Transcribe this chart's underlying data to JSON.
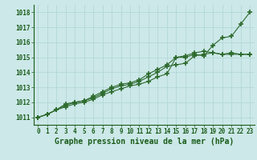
{
  "title": "Graphe pression niveau de la mer (hPa)",
  "hours": [
    0,
    1,
    2,
    3,
    4,
    5,
    6,
    7,
    8,
    9,
    10,
    11,
    12,
    13,
    14,
    15,
    16,
    17,
    18,
    19,
    20,
    21,
    22,
    23
  ],
  "line1": [
    1011.0,
    1011.2,
    1011.5,
    1011.7,
    1011.9,
    1012.0,
    1012.2,
    1012.5,
    1012.7,
    1012.9,
    1013.1,
    1013.2,
    1013.4,
    1013.7,
    1013.9,
    1015.0,
    1015.0,
    1015.2,
    1015.1,
    1015.8,
    1016.3,
    1016.4,
    1017.2,
    1018.0
  ],
  "line2": [
    1011.0,
    1011.2,
    1011.5,
    1011.8,
    1012.0,
    1012.1,
    1012.3,
    1012.6,
    1012.9,
    1013.1,
    1013.2,
    1013.4,
    1013.7,
    1014.0,
    1014.4,
    1014.5,
    1014.6,
    1015.1,
    1015.2,
    1015.3,
    1015.2,
    1015.3,
    1015.2,
    1015.2
  ],
  "line3": [
    1011.0,
    1011.2,
    1011.5,
    1011.9,
    1012.0,
    1012.1,
    1012.4,
    1012.7,
    1013.0,
    1013.2,
    1013.3,
    1013.5,
    1013.9,
    1014.2,
    1014.5,
    1015.0,
    1015.1,
    1015.3,
    1015.4,
    1015.3,
    1015.2,
    1015.2,
    1015.2,
    1015.2
  ],
  "line_color": "#2d6a2d",
  "bg_color": "#cce8e8",
  "grid_color": "#b0d4d4",
  "label_color": "#1a5c1a",
  "ylim_min": 1010.5,
  "ylim_max": 1018.5,
  "yticks": [
    1011,
    1012,
    1013,
    1014,
    1015,
    1016,
    1017,
    1018
  ],
  "marker": "+",
  "markersize": 4,
  "markeredgewidth": 1.2,
  "linewidth": 0.8,
  "title_fontsize": 7,
  "tick_fontsize": 5.5
}
